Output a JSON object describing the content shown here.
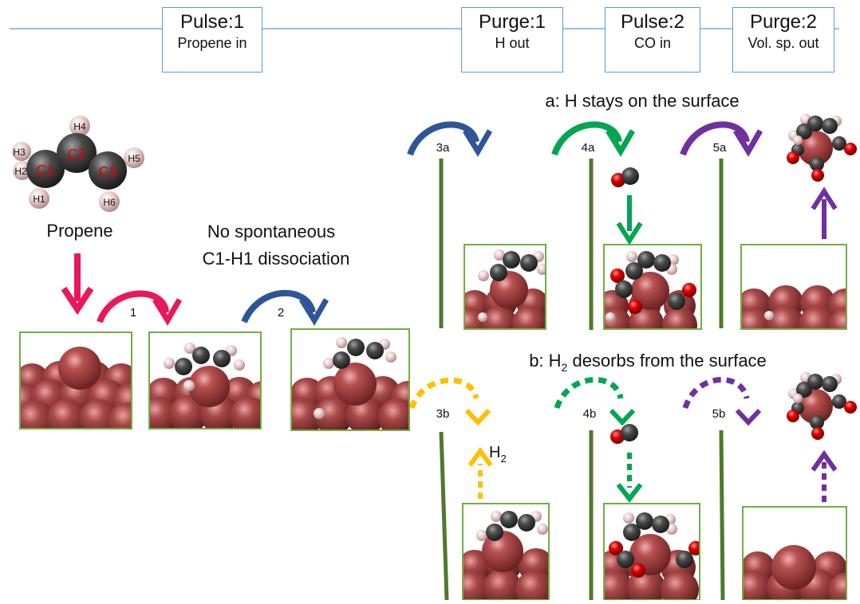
{
  "timeline": {
    "phases": [
      {
        "title": "Pulse:1",
        "subtitle": "Propene in"
      },
      {
        "title": "Purge:1",
        "subtitle": "H out"
      },
      {
        "title": "Pulse:2",
        "subtitle": "CO in"
      },
      {
        "title": "Purge:2",
        "subtitle": "Vol. sp. out"
      }
    ]
  },
  "molecule": {
    "name": "Propene",
    "carbons": [
      "C1",
      "C2",
      "C3"
    ],
    "hydrogens": [
      "H1",
      "H2",
      "H3",
      "H4",
      "H5",
      "H6"
    ]
  },
  "note": {
    "line1": "No spontaneous",
    "line2": "C1-H1 dissociation"
  },
  "steps": {
    "s1": "1",
    "s2": "2",
    "s3a": "3a",
    "s4a": "4a",
    "s5a": "5a",
    "s3b": "3b",
    "s4b": "4b",
    "s5b": "5b"
  },
  "pathways": {
    "a": "a: H stays on the surface",
    "b_prefix": "b: H",
    "b_sub": "2",
    "b_suffix": " desorbs from the surface"
  },
  "h2_label": {
    "base": "H",
    "sub": "2"
  },
  "colors": {
    "timeline": "#5b9bd5",
    "box_border": "#70ad47",
    "wall": "#4e7a2a",
    "pink": "#e8185a",
    "blue": "#2e5597",
    "green": "#00a650",
    "purple": "#7030a0",
    "yellow": "#ffc000",
    "metal": "#8b3a3a",
    "carbon": "#4a4a4a",
    "hydrogen": "#e8c8c8",
    "oxygen": "#d90000"
  }
}
